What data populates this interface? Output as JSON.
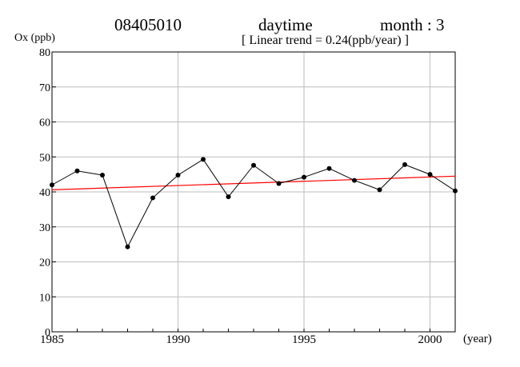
{
  "header": {
    "station": "08405010",
    "period": "daytime",
    "month": "month : 3",
    "trend": "[ Linear trend = 0.24(ppb/year) ]"
  },
  "chart_data": {
    "type": "line",
    "ylabel": "Ox (ppb)",
    "xlabel": "(year)",
    "xlim": [
      1985,
      2001
    ],
    "ylim": [
      0,
      80
    ],
    "x_ticks": [
      1985,
      1990,
      1995,
      2000
    ],
    "y_ticks": [
      0,
      10,
      20,
      30,
      40,
      50,
      60,
      70,
      80
    ],
    "grid": true,
    "series": [
      {
        "color": "#000000",
        "x": [
          1985,
          1986,
          1987,
          1988,
          1989,
          1990,
          1991,
          1992,
          1993,
          1994,
          1995,
          1996,
          1997,
          1998,
          1999,
          2000,
          2001
        ],
        "y": [
          42.0,
          46.0,
          44.8,
          24.3,
          38.3,
          44.8,
          49.3,
          38.6,
          47.6,
          42.4,
          44.2,
          46.7,
          43.3,
          40.6,
          47.8,
          45.0,
          40.3
        ]
      }
    ],
    "trend_line": {
      "color": "#ff0000",
      "x": [
        1985,
        2001
      ],
      "y": [
        40.6,
        44.5
      ]
    }
  }
}
